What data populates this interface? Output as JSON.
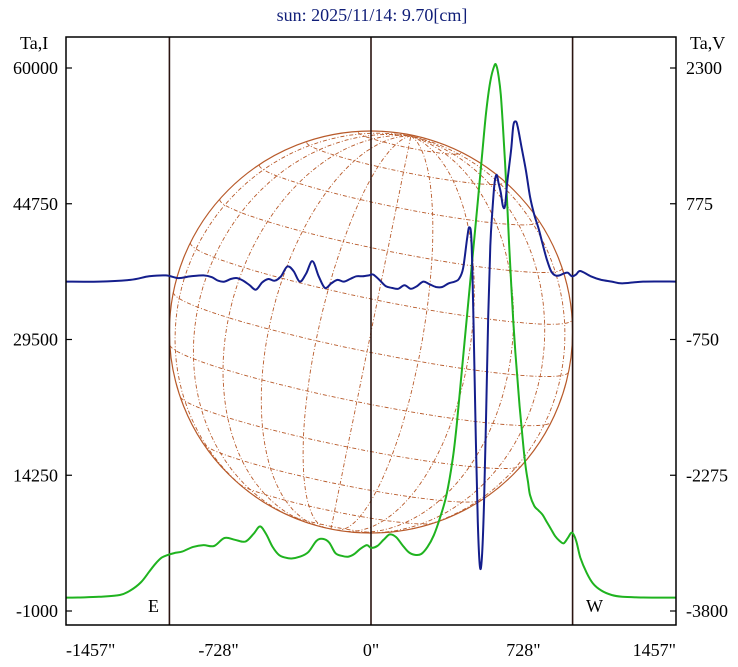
{
  "chart_data": {
    "type": "line",
    "title": "sun: 2025/11/14: 9.70[cm]",
    "left_axis_label": "Ta,I",
    "right_axis_label": "Ta,V",
    "x_range": [
      -1457,
      1457
    ],
    "x_ticks": [
      {
        "value": -1457,
        "label": "-1457\""
      },
      {
        "value": -728,
        "label": "-728\""
      },
      {
        "value": 0,
        "label": "0\""
      },
      {
        "value": 728,
        "label": "728\""
      },
      {
        "value": 1457,
        "label": "1457\""
      }
    ],
    "y_left_range": [
      -1000,
      60000
    ],
    "y_left_ticks": [
      {
        "value": 60000,
        "label": "60000"
      },
      {
        "value": 44750,
        "label": "44750"
      },
      {
        "value": 29500,
        "label": "29500"
      },
      {
        "value": 14250,
        "label": "14250"
      },
      {
        "value": -1000,
        "label": "-1000"
      }
    ],
    "y_right_range": [
      -3800,
      2300
    ],
    "y_right_ticks": [
      {
        "value": 2300,
        "label": "2300"
      },
      {
        "value": 775,
        "label": "775"
      },
      {
        "value": -750,
        "label": "-750"
      },
      {
        "value": -2275,
        "label": "-2275"
      },
      {
        "value": -3800,
        "label": "-3800"
      }
    ],
    "vertical_markers": [
      -963,
      0,
      963
    ],
    "limb_labels": {
      "east": "E",
      "west": "W"
    },
    "grid": false,
    "colors": {
      "intensity": "#1fb31f",
      "polarization": "#141e8c",
      "disk": "#b85a2a",
      "markers": "#2a1410",
      "title": "#101e78"
    },
    "series": [
      {
        "key": "intensity",
        "axis": "left",
        "x": [
          -1457,
          -1400,
          -1300,
          -1200,
          -1150,
          -1100,
          -1060,
          -1030,
          -1000,
          -970,
          -940,
          -900,
          -850,
          -800,
          -750,
          -700,
          -650,
          -600,
          -560,
          -530,
          -500,
          -470,
          -440,
          -410,
          -380,
          -340,
          -300,
          -260,
          -230,
          -200,
          -170,
          -140,
          -110,
          -80,
          -50,
          -20,
          0,
          30,
          60,
          90,
          120,
          150,
          180,
          210,
          240,
          270,
          300,
          330,
          360,
          390,
          410,
          430,
          450,
          470,
          490,
          510,
          530,
          550,
          570,
          590,
          600,
          610,
          620,
          630,
          640,
          650,
          660,
          670,
          680,
          690,
          700,
          710,
          720,
          730,
          740,
          750,
          760,
          780,
          800,
          820,
          840,
          860,
          880,
          900,
          920,
          940,
          960,
          980,
          1000,
          1030,
          1060,
          1100,
          1150,
          1200,
          1300,
          1400,
          1457
        ],
        "values": [
          500,
          520,
          600,
          800,
          1300,
          2200,
          3400,
          4300,
          5000,
          5300,
          5500,
          5700,
          6200,
          6400,
          6300,
          7200,
          7000,
          6800,
          7700,
          8500,
          7600,
          6200,
          5300,
          5000,
          4900,
          5100,
          5600,
          6900,
          7100,
          6700,
          5500,
          5200,
          5100,
          5400,
          6000,
          6400,
          6100,
          6300,
          7000,
          7600,
          7300,
          6400,
          5600,
          5300,
          5400,
          6200,
          7500,
          9500,
          12000,
          16000,
          20000,
          25000,
          30000,
          35000,
          40000,
          45000,
          50000,
          55000,
          58500,
          60300,
          60200,
          59000,
          57000,
          53500,
          49500,
          45000,
          40000,
          35500,
          31500,
          28000,
          25000,
          22000,
          19500,
          17000,
          15000,
          13500,
          12000,
          10800,
          10300,
          9800,
          9000,
          8200,
          7400,
          6900,
          6600,
          7200,
          7800,
          6900,
          5000,
          3300,
          2100,
          1300,
          800,
          600,
          520,
          500,
          500
        ]
      },
      {
        "key": "polarization",
        "axis": "right",
        "x": [
          -1457,
          -1300,
          -1150,
          -1060,
          -980,
          -920,
          -860,
          -800,
          -760,
          -730,
          -700,
          -670,
          -640,
          -610,
          -580,
          -550,
          -520,
          -490,
          -460,
          -430,
          -400,
          -370,
          -340,
          -310,
          -280,
          -250,
          -220,
          -190,
          -160,
          -130,
          -100,
          -70,
          -40,
          -10,
          10,
          40,
          70,
          100,
          130,
          160,
          190,
          220,
          250,
          280,
          310,
          340,
          370,
          400,
          420,
          440,
          460,
          470,
          480,
          490,
          500,
          510,
          520,
          530,
          540,
          550,
          560,
          570,
          580,
          590,
          600,
          610,
          620,
          630,
          640,
          650,
          660,
          670,
          680,
          690,
          700,
          720,
          740,
          760,
          780,
          800,
          820,
          840,
          860,
          880,
          900,
          920,
          940,
          960,
          980,
          1000,
          1050,
          1100,
          1150,
          1200,
          1300,
          1457
        ],
        "values": [
          -100,
          -100,
          -80,
          -40,
          -30,
          -60,
          -40,
          -30,
          -50,
          -90,
          -100,
          -70,
          -60,
          -90,
          -140,
          -190,
          -110,
          -70,
          -90,
          -40,
          70,
          20,
          -100,
          -10,
          130,
          -40,
          -170,
          -120,
          -80,
          -100,
          -70,
          -40,
          -40,
          -30,
          -20,
          -80,
          -150,
          -170,
          -180,
          -140,
          -180,
          -150,
          -100,
          -130,
          -160,
          -160,
          -120,
          -100,
          -70,
          50,
          400,
          510,
          350,
          -600,
          -1800,
          -2800,
          -3300,
          -3200,
          -2600,
          -1600,
          -500,
          300,
          700,
          1000,
          1100,
          1000,
          900,
          750,
          750,
          1000,
          1200,
          1400,
          1650,
          1700,
          1650,
          1400,
          1150,
          850,
          650,
          500,
          320,
          150,
          20,
          -30,
          -30,
          -10,
          0,
          -40,
          -20,
          20,
          -40,
          -80,
          -100,
          -120,
          -100,
          -100
        ]
      }
    ]
  }
}
